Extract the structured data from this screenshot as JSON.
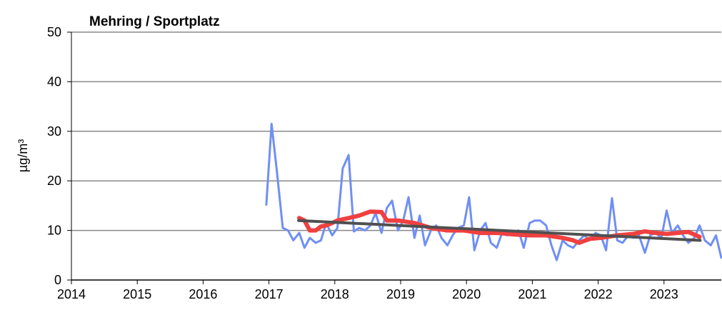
{
  "chart_data": {
    "type": "line",
    "title": "Mehring / Sportplatz",
    "ylabel": "µg/m³",
    "xlim": [
      2014,
      2023.87
    ],
    "xticks": [
      2014,
      2015,
      2016,
      2017,
      2018,
      2019,
      2020,
      2021,
      2022,
      2023
    ],
    "ylim": [
      0,
      50
    ],
    "yticks": [
      0,
      10,
      20,
      30,
      40,
      50
    ],
    "grid": true,
    "series": [
      {
        "color": "#6f8ff5",
        "width": 3,
        "x": [
          2016.96,
          2017.04,
          2017.12,
          2017.21,
          2017.29,
          2017.37,
          2017.46,
          2017.54,
          2017.62,
          2017.71,
          2017.79,
          2017.87,
          2017.96,
          2018.04,
          2018.12,
          2018.21,
          2018.29,
          2018.37,
          2018.46,
          2018.54,
          2018.62,
          2018.71,
          2018.79,
          2018.87,
          2018.96,
          2019.04,
          2019.12,
          2019.21,
          2019.29,
          2019.37,
          2019.46,
          2019.54,
          2019.62,
          2019.71,
          2019.79,
          2019.87,
          2019.96,
          2020.04,
          2020.12,
          2020.21,
          2020.29,
          2020.37,
          2020.46,
          2020.54,
          2020.62,
          2020.71,
          2020.79,
          2020.87,
          2020.96,
          2021.04,
          2021.12,
          2021.21,
          2021.29,
          2021.37,
          2021.46,
          2021.54,
          2021.62,
          2021.71,
          2021.79,
          2021.87,
          2021.96,
          2022.04,
          2022.12,
          2022.21,
          2022.29,
          2022.37,
          2022.46,
          2022.54,
          2022.62,
          2022.71,
          2022.79,
          2022.87,
          2022.96,
          2023.04,
          2023.12,
          2023.21,
          2023.29,
          2023.37,
          2023.46,
          2023.54,
          2023.62,
          2023.71,
          2023.79,
          2023.87
        ],
        "values": [
          15.2,
          31.5,
          22,
          10.5,
          10,
          8,
          9.5,
          6.5,
          8.5,
          7.5,
          8,
          11.5,
          9,
          10.5,
          22.5,
          25.2,
          9.8,
          10.5,
          10,
          11,
          13.5,
          9.5,
          14.5,
          16,
          10,
          12,
          16.7,
          8.5,
          13,
          7,
          10,
          11,
          8.5,
          7,
          9,
          10.5,
          11,
          16.7,
          6,
          10,
          11.5,
          7.5,
          6.5,
          9.5,
          9,
          9.5,
          10,
          6.5,
          11.5,
          12,
          12,
          11,
          7,
          4,
          8,
          7,
          6.5,
          8,
          9,
          8,
          9.5,
          9,
          6,
          16.5,
          8,
          7.5,
          9,
          8.5,
          9,
          5.5,
          9,
          9.5,
          8.5,
          14,
          9.5,
          11,
          9,
          7.5,
          8.5,
          11,
          8,
          7,
          9,
          4.5
        ]
      },
      {
        "color": "#f04040",
        "width": 6,
        "x": [
          2017.46,
          2017.54,
          2017.62,
          2017.71,
          2017.79,
          2017.87,
          2017.96,
          2018.04,
          2018.21,
          2018.37,
          2018.54,
          2018.71,
          2018.79,
          2018.96,
          2019.21,
          2019.46,
          2019.71,
          2019.96,
          2020.21,
          2020.46,
          2020.71,
          2020.96,
          2021.21,
          2021.46,
          2021.62,
          2021.71,
          2021.87,
          2022.04,
          2022.29,
          2022.54,
          2022.71,
          2022.87,
          2023.04,
          2023.21,
          2023.37,
          2023.54
        ],
        "values": [
          12.5,
          12,
          10,
          10,
          10.8,
          11,
          11.5,
          12,
          12.5,
          13,
          13.8,
          13.7,
          12,
          12,
          11.5,
          10.5,
          10,
          10,
          9.5,
          9.5,
          9.2,
          9,
          9,
          8.5,
          8,
          7.5,
          8.3,
          8.5,
          9,
          9.3,
          9.8,
          9.5,
          9.3,
          9.5,
          9.7,
          8.7
        ]
      },
      {
        "color": "#505050",
        "width": 4,
        "x": [
          2017.45,
          2023.55
        ],
        "values": [
          12,
          8
        ]
      }
    ]
  }
}
